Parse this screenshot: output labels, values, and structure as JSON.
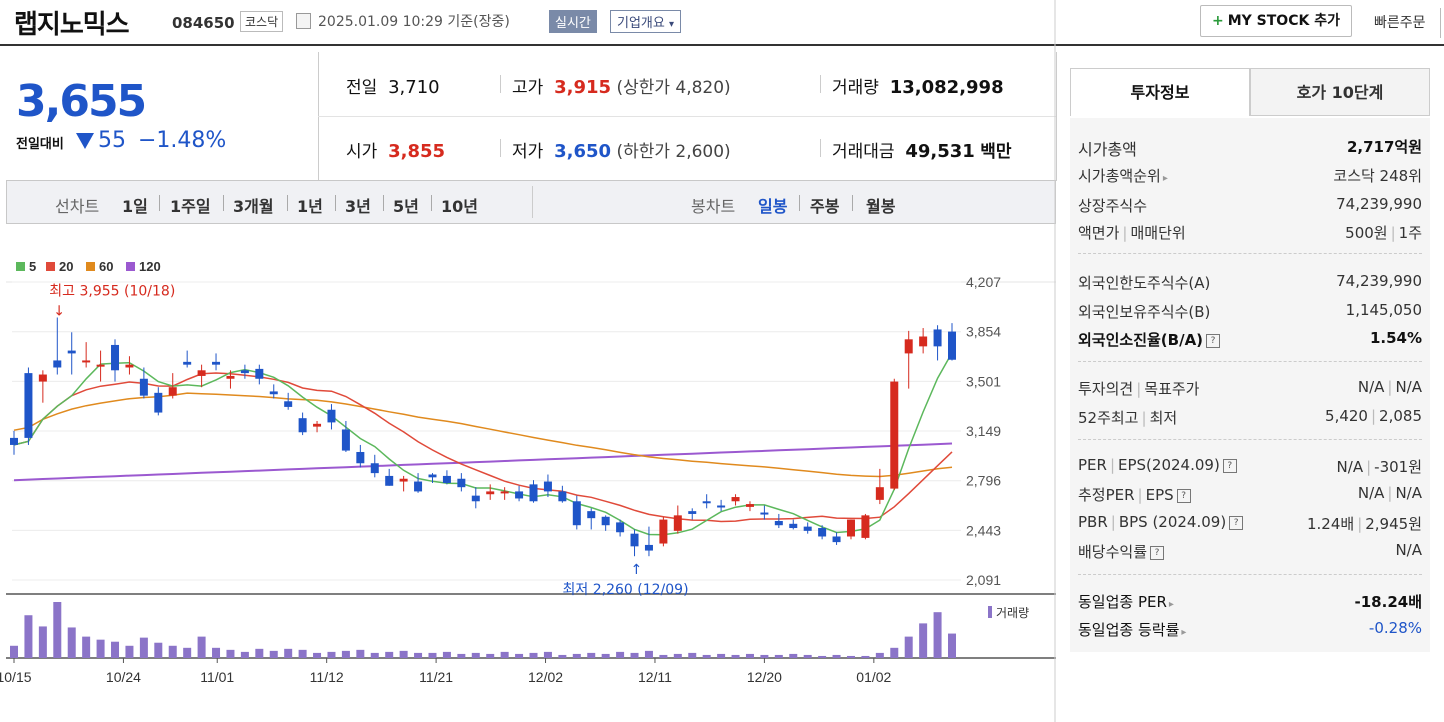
{
  "header": {
    "title": "랩지노믹스",
    "code": "084650",
    "market": "코스닥",
    "datetime": "2025.01.09 10:29 기준(장중)",
    "realtime": "실시간",
    "company_info": "기업개요",
    "my_stock": "MY STOCK 추가",
    "quick_order": "빠른주문"
  },
  "price": {
    "now": "3,655",
    "change_label": "전일대비",
    "change": "55",
    "change_pct": "−1.48%",
    "prev_label": "전일",
    "prev": "3,710",
    "high_label": "고가",
    "high": "3,915",
    "upper_limit": "(상한가 4,820)",
    "volume_label": "거래량",
    "volume": "13,082,998",
    "open_label": "시가",
    "open": "3,855",
    "low_label": "저가",
    "low": "3,650",
    "lower_limit": "(하한가 2,600)",
    "amount_label": "거래대금",
    "amount": "49,531",
    "amount_unit": "백만"
  },
  "periods": {
    "line_label": "선차트",
    "items": [
      "1일",
      "1주일",
      "3개월",
      "1년",
      "3년",
      "5년",
      "10년"
    ],
    "candle_label": "봉차트",
    "candles": [
      "일봉",
      "주봉",
      "월봉"
    ],
    "active": "일봉"
  },
  "colors": {
    "up": "#d62a1e",
    "down": "#1f55c8",
    "ma5": "#5cb85c",
    "ma20": "#e04a3a",
    "ma60": "#e08a1e",
    "ma120": "#9b59d0",
    "vol": "#8b74c8"
  },
  "chart_data": {
    "type": "candlestick",
    "legend": [
      "5",
      "20",
      "60",
      "120"
    ],
    "y_ticks": [
      4207,
      3854,
      3501,
      3149,
      2796,
      2443,
      2091
    ],
    "x_labels": [
      "10/15",
      "10/24",
      "11/01",
      "11/12",
      "11/21",
      "12/02",
      "12/11",
      "12/20",
      "01/02"
    ],
    "max_annotation": "최고 3,955 (10/18)",
    "min_annotation": "최저 2,260 (12/09)",
    "volume_label": "거래량",
    "ylim": [
      2091,
      4207
    ],
    "candles": [
      [
        3100,
        3050,
        3150,
        2980
      ],
      [
        3560,
        3100,
        3600,
        3050
      ],
      [
        3500,
        3550,
        3580,
        3350
      ],
      [
        3650,
        3600,
        3955,
        3550
      ],
      [
        3720,
        3700,
        3850,
        3550
      ],
      [
        3640,
        3650,
        3780,
        3600
      ],
      [
        3610,
        3620,
        3720,
        3500
      ],
      [
        3760,
        3580,
        3800,
        3500
      ],
      [
        3600,
        3620,
        3680,
        3550
      ],
      [
        3520,
        3400,
        3600,
        3380
      ],
      [
        3420,
        3280,
        3460,
        3260
      ],
      [
        3400,
        3460,
        3560,
        3380
      ],
      [
        3640,
        3620,
        3720,
        3600
      ],
      [
        3540,
        3580,
        3620,
        3460
      ],
      [
        3640,
        3620,
        3700,
        3580
      ],
      [
        3520,
        3540,
        3580,
        3450
      ],
      [
        3580,
        3560,
        3620,
        3520
      ],
      [
        3590,
        3520,
        3620,
        3480
      ],
      [
        3430,
        3410,
        3480,
        3380
      ],
      [
        3360,
        3320,
        3420,
        3300
      ],
      [
        3240,
        3140,
        3280,
        3120
      ],
      [
        3180,
        3200,
        3220,
        3140
      ],
      [
        3300,
        3210,
        3340,
        3160
      ],
      [
        3160,
        3010,
        3220,
        3000
      ],
      [
        3000,
        2920,
        3050,
        2890
      ],
      [
        2920,
        2850,
        2980,
        2820
      ],
      [
        2830,
        2760,
        2880,
        2760
      ],
      [
        2790,
        2810,
        2830,
        2720
      ],
      [
        2790,
        2720,
        2850,
        2710
      ],
      [
        2840,
        2820,
        2850,
        2780
      ],
      [
        2830,
        2780,
        2870,
        2770
      ],
      [
        2810,
        2750,
        2850,
        2720
      ],
      [
        2690,
        2650,
        2750,
        2600
      ],
      [
        2700,
        2720,
        2770,
        2660
      ],
      [
        2710,
        2720,
        2750,
        2660
      ],
      [
        2720,
        2670,
        2760,
        2650
      ],
      [
        2770,
        2650,
        2800,
        2640
      ],
      [
        2790,
        2720,
        2840,
        2680
      ],
      [
        2720,
        2650,
        2760,
        2640
      ],
      [
        2650,
        2480,
        2690,
        2450
      ],
      [
        2580,
        2530,
        2600,
        2450
      ],
      [
        2540,
        2480,
        2550,
        2440
      ],
      [
        2500,
        2430,
        2520,
        2400
      ],
      [
        2420,
        2330,
        2450,
        2260
      ],
      [
        2340,
        2300,
        2470,
        2260
      ],
      [
        2350,
        2520,
        2540,
        2330
      ],
      [
        2440,
        2550,
        2620,
        2420
      ],
      [
        2580,
        2560,
        2600,
        2520
      ],
      [
        2650,
        2640,
        2700,
        2600
      ],
      [
        2620,
        2610,
        2660,
        2580
      ],
      [
        2650,
        2680,
        2700,
        2620
      ],
      [
        2610,
        2630,
        2650,
        2580
      ],
      [
        2570,
        2560,
        2620,
        2520
      ],
      [
        2510,
        2480,
        2560,
        2460
      ],
      [
        2490,
        2460,
        2520,
        2450
      ],
      [
        2470,
        2440,
        2500,
        2420
      ],
      [
        2460,
        2400,
        2480,
        2380
      ],
      [
        2400,
        2360,
        2430,
        2340
      ],
      [
        2400,
        2520,
        2520,
        2380
      ],
      [
        2390,
        2550,
        2560,
        2380
      ],
      [
        2660,
        2750,
        2880,
        2630
      ],
      [
        2740,
        3500,
        3520,
        2730
      ],
      [
        3700,
        3800,
        3860,
        3450
      ],
      [
        3750,
        3820,
        3880,
        3700
      ],
      [
        3870,
        3750,
        3900,
        3650
      ],
      [
        3855,
        3655,
        3915,
        3650
      ]
    ],
    "volumes": [
      1.2,
      4.2,
      3.1,
      5.5,
      3.0,
      2.1,
      1.8,
      1.6,
      1.2,
      2.0,
      1.5,
      1.2,
      1.0,
      2.1,
      1.0,
      0.8,
      0.6,
      0.9,
      0.7,
      0.9,
      0.8,
      0.5,
      0.6,
      0.7,
      0.8,
      0.5,
      0.6,
      0.7,
      0.5,
      0.5,
      0.6,
      0.4,
      0.5,
      0.4,
      0.6,
      0.4,
      0.5,
      0.6,
      0.3,
      0.4,
      0.5,
      0.4,
      0.6,
      0.5,
      0.7,
      0.3,
      0.4,
      0.5,
      0.3,
      0.4,
      0.3,
      0.4,
      0.3,
      0.3,
      0.4,
      0.3,
      0.2,
      0.3,
      0.2,
      0.2,
      0.5,
      1.0,
      2.1,
      3.4,
      4.5,
      2.4
    ]
  },
  "invest": {
    "tab_on": "투자정보",
    "tab_off": "호가 10단계",
    "rows1": [
      {
        "label": "시가총액",
        "value": "2,717억원"
      },
      {
        "label": "시가총액순위",
        "value": "코스닥 248위"
      },
      {
        "label": "상장주식수",
        "value": "74,239,990"
      },
      {
        "label": "액면가",
        "label2": "매매단위",
        "value": "500원",
        "value2": "1주"
      }
    ],
    "rows2": [
      {
        "label": "외국인한도주식수(A)",
        "value": "74,239,990"
      },
      {
        "label": "외국인보유주식수(B)",
        "value": "1,145,050"
      },
      {
        "label": "외국인소진율(B/A)",
        "value": "1.54%"
      }
    ],
    "rows3": [
      {
        "label": "투자의견",
        "label2": "목표주가",
        "value": "N/A",
        "value2": "N/A"
      },
      {
        "label": "52주최고",
        "label2": "최저",
        "value": "5,420",
        "value2": "2,085"
      }
    ],
    "rows4": [
      {
        "label": "PER",
        "label2": "EPS(2024.09)",
        "value": "N/A",
        "value2": "-301원"
      },
      {
        "label": "추정PER",
        "label2": "EPS",
        "value": "N/A",
        "value2": "N/A"
      },
      {
        "label": "PBR",
        "label2": "BPS (2024.09)",
        "value": "1.24배",
        "value2": "2,945원"
      },
      {
        "label": "배당수익률",
        "value": "N/A"
      }
    ],
    "rows5": [
      {
        "label": "동일업종 PER",
        "value": "-18.24배"
      },
      {
        "label": "동일업종 등락률",
        "value": "-0.28%"
      }
    ]
  }
}
